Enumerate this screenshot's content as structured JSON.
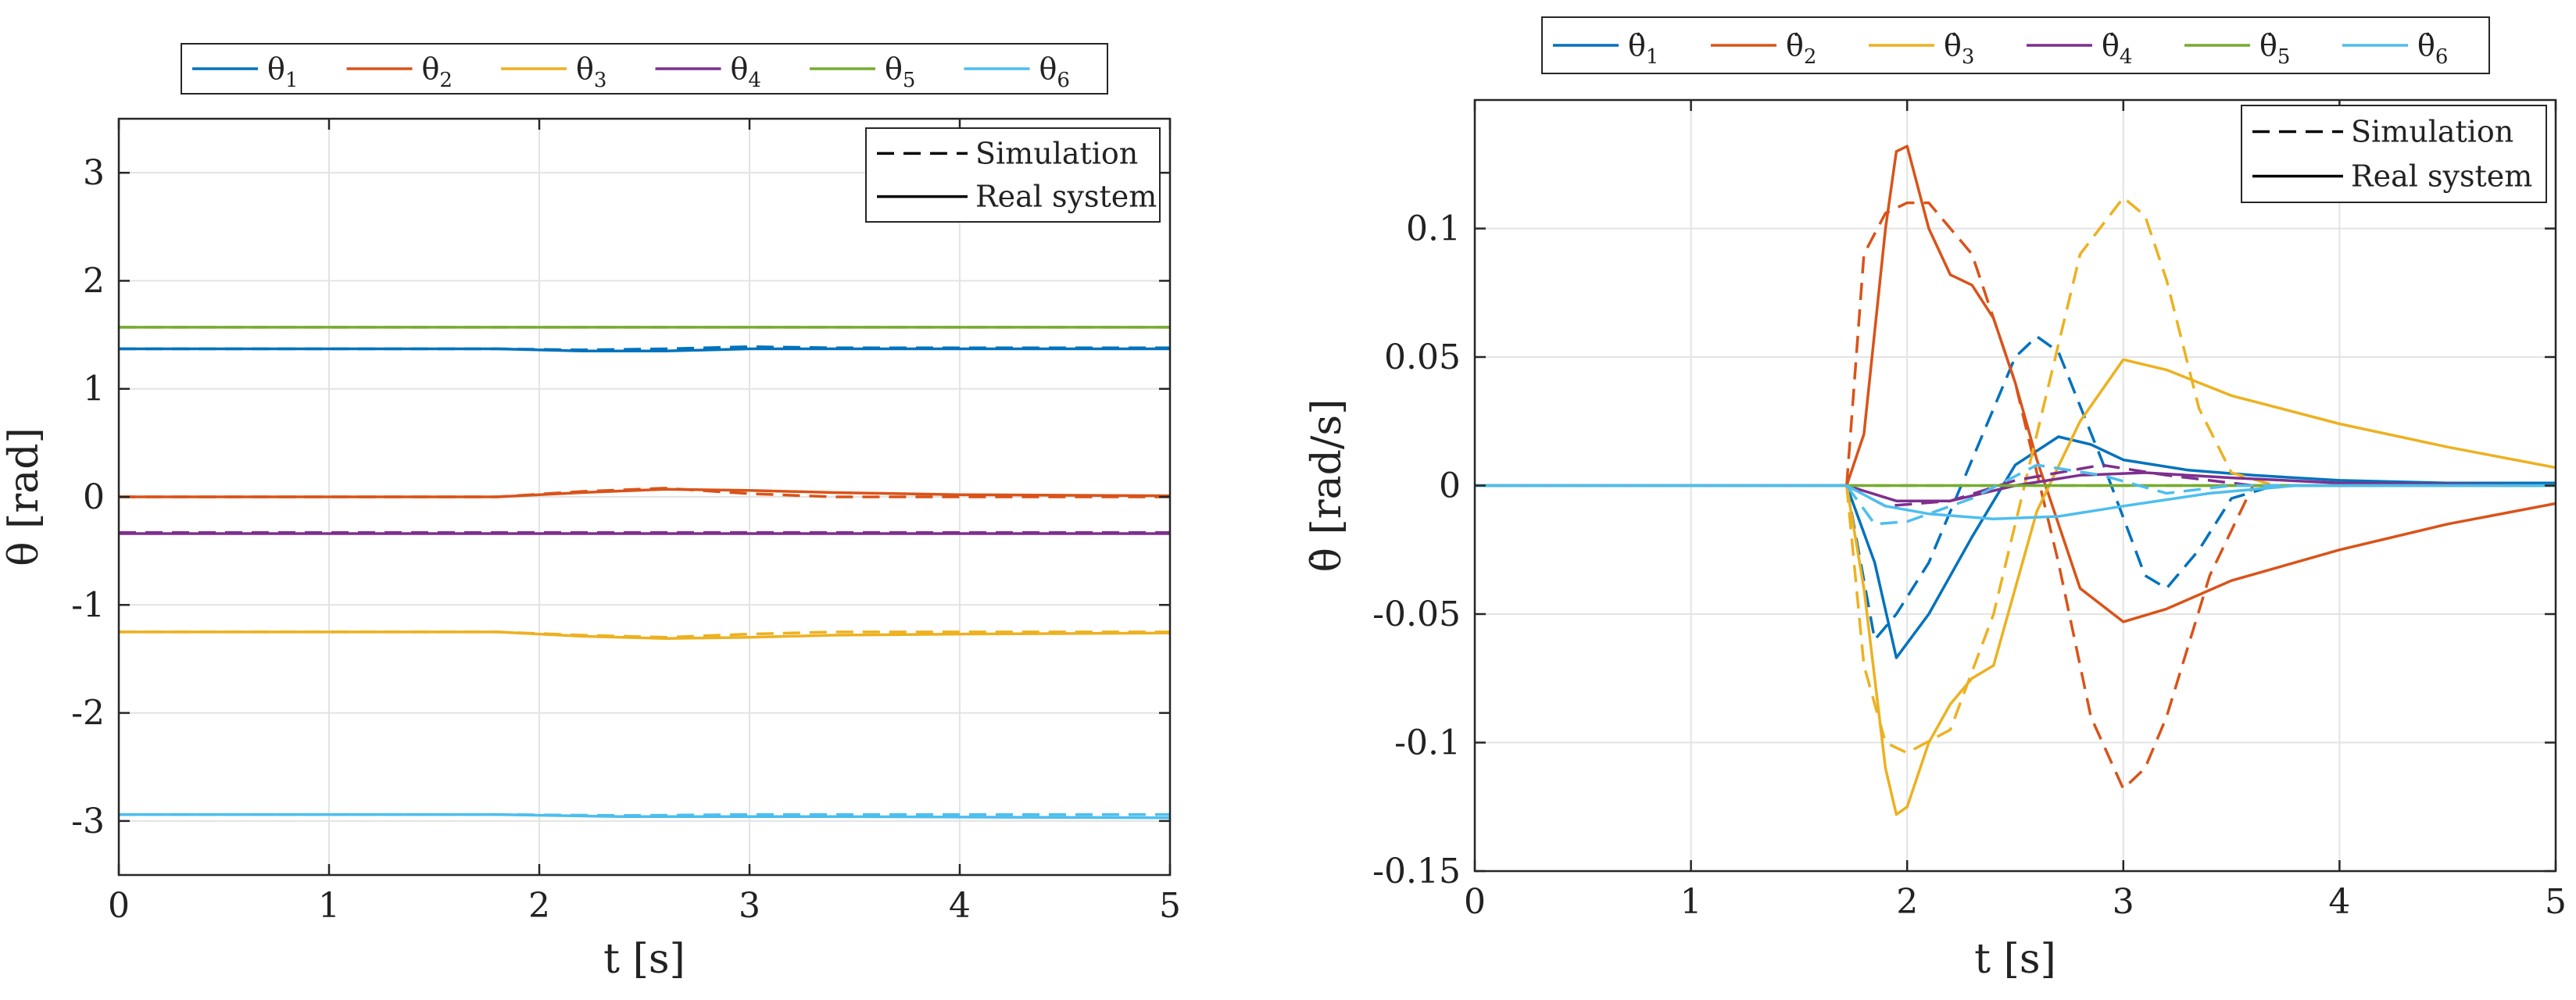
{
  "chart_data": [
    {
      "type": "line",
      "title": "",
      "xlabel": "t [s]",
      "ylabel": "θ [rad]",
      "xlim": [
        0,
        5
      ],
      "ylim": [
        -3.5,
        3.5
      ],
      "xticks": [
        0,
        1,
        2,
        3,
        4,
        5
      ],
      "xtick_labels": [
        "0",
        "1",
        "2",
        "3",
        "4",
        "5"
      ],
      "yticks": [
        -3,
        -2,
        -1,
        0,
        1,
        2,
        3
      ],
      "ytick_labels": [
        "-3",
        "-2",
        "-1",
        "0",
        "1",
        "2",
        "3"
      ],
      "grid": true,
      "legend_position": "top-outside",
      "style_legend": {
        "position": "top-right",
        "dashed": "Simulation",
        "solid": "Real system"
      },
      "series": [
        {
          "name": "θ",
          "sub": "1",
          "color": "#0072BD",
          "simulation": {
            "x": [
              0,
              1.8,
              2.2,
              2.6,
              3.0,
              3.4,
              5
            ],
            "y": [
              1.37,
              1.37,
              1.36,
              1.37,
              1.39,
              1.38,
              1.38
            ]
          },
          "real": {
            "x": [
              0,
              1.8,
              2.2,
              2.6,
              3.0,
              3.4,
              5
            ],
            "y": [
              1.37,
              1.37,
              1.35,
              1.35,
              1.37,
              1.37,
              1.37
            ]
          }
        },
        {
          "name": "θ",
          "sub": "2",
          "color": "#D95319",
          "simulation": {
            "x": [
              0,
              1.8,
              2.2,
              2.6,
              3.0,
              3.4,
              5
            ],
            "y": [
              0.0,
              0.0,
              0.05,
              0.08,
              0.03,
              0.0,
              0.0
            ]
          },
          "real": {
            "x": [
              0,
              1.8,
              2.2,
              2.6,
              3.0,
              3.4,
              4.0,
              5
            ],
            "y": [
              0.0,
              0.0,
              0.04,
              0.07,
              0.06,
              0.04,
              0.02,
              0.01
            ]
          }
        },
        {
          "name": "θ",
          "sub": "3",
          "color": "#EDB120",
          "simulation": {
            "x": [
              0,
              1.8,
              2.2,
              2.6,
              3.0,
              3.4,
              5
            ],
            "y": [
              -1.25,
              -1.25,
              -1.28,
              -1.3,
              -1.27,
              -1.25,
              -1.25
            ]
          },
          "real": {
            "x": [
              0,
              1.8,
              2.2,
              2.6,
              3.0,
              3.4,
              4.0,
              5
            ],
            "y": [
              -1.25,
              -1.25,
              -1.29,
              -1.31,
              -1.3,
              -1.28,
              -1.27,
              -1.26
            ]
          }
        },
        {
          "name": "θ",
          "sub": "4",
          "color": "#7E2F8E",
          "simulation": {
            "x": [
              0,
              5
            ],
            "y": [
              -0.33,
              -0.33
            ]
          },
          "real": {
            "x": [
              0,
              5
            ],
            "y": [
              -0.34,
              -0.34
            ]
          }
        },
        {
          "name": "θ",
          "sub": "5",
          "color": "#77AC30",
          "simulation": {
            "x": [
              0,
              5
            ],
            "y": [
              1.57,
              1.57
            ]
          },
          "real": {
            "x": [
              0,
              5
            ],
            "y": [
              1.57,
              1.57
            ]
          }
        },
        {
          "name": "θ",
          "sub": "6",
          "color": "#4DBEEE",
          "simulation": {
            "x": [
              0,
              1.8,
              2.4,
              3.0,
              3.4,
              5
            ],
            "y": [
              -2.94,
              -2.94,
              -2.95,
              -2.94,
              -2.94,
              -2.94
            ]
          },
          "real": {
            "x": [
              0,
              1.8,
              2.4,
              3.0,
              3.4,
              5
            ],
            "y": [
              -2.94,
              -2.94,
              -2.96,
              -2.96,
              -2.96,
              -2.97
            ]
          }
        }
      ]
    },
    {
      "type": "line",
      "title": "",
      "xlabel": "t [s]",
      "ylabel": "θ̇ [rad/s]",
      "xlim": [
        0,
        5
      ],
      "ylim": [
        -0.15,
        0.15
      ],
      "xticks": [
        0,
        1,
        2,
        3,
        4,
        5
      ],
      "xtick_labels": [
        "0",
        "1",
        "2",
        "3",
        "4",
        "5"
      ],
      "yticks": [
        -0.15,
        -0.1,
        -0.05,
        0,
        0.05,
        0.1
      ],
      "ytick_labels": [
        "-0.15",
        "-0.1",
        "-0.05",
        "0",
        "0.05",
        "0.1"
      ],
      "grid": true,
      "legend_position": "top-outside",
      "style_legend": {
        "position": "top-right",
        "dashed": "Simulation",
        "solid": "Real system"
      },
      "series": [
        {
          "name": "θ̇",
          "sub": "1",
          "color": "#0072BD",
          "simulation": {
            "x": [
              0,
              1.72,
              1.85,
              1.95,
              2.1,
              2.3,
              2.5,
              2.6,
              2.7,
              2.9,
              3.1,
              3.2,
              3.35,
              3.5,
              3.7,
              5
            ],
            "y": [
              0,
              0,
              -0.06,
              -0.05,
              -0.03,
              0.01,
              0.05,
              0.058,
              0.052,
              0.01,
              -0.035,
              -0.04,
              -0.025,
              -0.005,
              0,
              0
            ]
          },
          "real": {
            "x": [
              0,
              1.72,
              1.85,
              1.95,
              2.1,
              2.3,
              2.5,
              2.7,
              2.85,
              3.0,
              3.3,
              3.6,
              4.0,
              4.5,
              5
            ],
            "y": [
              0,
              0,
              -0.03,
              -0.067,
              -0.05,
              -0.02,
              0.008,
              0.019,
              0.016,
              0.01,
              0.006,
              0.004,
              0.002,
              0.001,
              0.001
            ]
          }
        },
        {
          "name": "θ̇",
          "sub": "2",
          "color": "#D95319",
          "simulation": {
            "x": [
              0,
              1.72,
              1.8,
              1.9,
              2.0,
              2.1,
              2.3,
              2.5,
              2.7,
              2.85,
              3.0,
              3.1,
              3.2,
              3.4,
              3.6,
              5
            ],
            "y": [
              0,
              0,
              0.09,
              0.106,
              0.11,
              0.11,
              0.09,
              0.04,
              -0.03,
              -0.09,
              -0.118,
              -0.11,
              -0.09,
              -0.035,
              0,
              0
            ]
          },
          "real": {
            "x": [
              0,
              1.72,
              1.8,
              1.9,
              1.95,
              2.0,
              2.1,
              2.2,
              2.3,
              2.4,
              2.5,
              2.6,
              2.8,
              3.0,
              3.2,
              3.5,
              4.0,
              4.5,
              5
            ],
            "y": [
              0,
              0,
              0.02,
              0.1,
              0.13,
              0.132,
              0.1,
              0.082,
              0.078,
              0.065,
              0.04,
              0.01,
              -0.04,
              -0.053,
              -0.048,
              -0.037,
              -0.025,
              -0.015,
              -0.007
            ]
          }
        },
        {
          "name": "θ̇",
          "sub": "3",
          "color": "#EDB120",
          "simulation": {
            "x": [
              0,
              1.72,
              1.8,
              1.9,
              2.0,
              2.2,
              2.4,
              2.6,
              2.8,
              3.0,
              3.1,
              3.2,
              3.35,
              3.5,
              3.7,
              5
            ],
            "y": [
              0,
              0,
              -0.07,
              -0.1,
              -0.104,
              -0.095,
              -0.05,
              0.02,
              0.09,
              0.112,
              0.105,
              0.08,
              0.03,
              0.005,
              0,
              0
            ]
          },
          "real": {
            "x": [
              0,
              1.72,
              1.8,
              1.9,
              1.95,
              2.0,
              2.1,
              2.2,
              2.3,
              2.4,
              2.5,
              2.6,
              2.8,
              3.0,
              3.2,
              3.5,
              4.0,
              4.5,
              5
            ],
            "y": [
              0,
              0,
              -0.04,
              -0.11,
              -0.128,
              -0.125,
              -0.1,
              -0.085,
              -0.075,
              -0.07,
              -0.04,
              -0.01,
              0.025,
              0.049,
              0.045,
              0.035,
              0.024,
              0.015,
              0.007
            ]
          }
        },
        {
          "name": "θ̇",
          "sub": "4",
          "color": "#7E2F8E",
          "simulation": {
            "x": [
              0,
              1.72,
              1.9,
              2.2,
              2.5,
              2.9,
              3.2,
              3.6,
              5
            ],
            "y": [
              0,
              0,
              -0.008,
              -0.006,
              0.002,
              0.008,
              0.004,
              0,
              0
            ]
          },
          "real": {
            "x": [
              0,
              1.72,
              1.95,
              2.2,
              2.5,
              2.8,
              3.1,
              3.5,
              4.0,
              5
            ],
            "y": [
              0,
              0,
              -0.006,
              -0.006,
              0.0,
              0.004,
              0.005,
              0.003,
              0.001,
              0
            ]
          }
        },
        {
          "name": "θ̇",
          "sub": "5",
          "color": "#77AC30",
          "simulation": {
            "x": [
              0,
              5
            ],
            "y": [
              0,
              0
            ]
          },
          "real": {
            "x": [
              0,
              5
            ],
            "y": [
              0,
              0
            ]
          }
        },
        {
          "name": "θ̇",
          "sub": "6",
          "color": "#4DBEEE",
          "simulation": {
            "x": [
              0,
              1.72,
              1.85,
              2.0,
              2.3,
              2.6,
              2.9,
              3.2,
              3.5,
              5
            ],
            "y": [
              0,
              0,
              -0.015,
              -0.014,
              -0.005,
              0.008,
              0.004,
              -0.003,
              0,
              0
            ]
          },
          "real": {
            "x": [
              0,
              1.72,
              1.9,
              2.1,
              2.4,
              2.7,
              3.0,
              3.4,
              3.8,
              4.2,
              5
            ],
            "y": [
              0,
              0,
              -0.008,
              -0.011,
              -0.013,
              -0.012,
              -0.008,
              -0.003,
              0,
              0,
              0
            ]
          }
        }
      ]
    }
  ]
}
